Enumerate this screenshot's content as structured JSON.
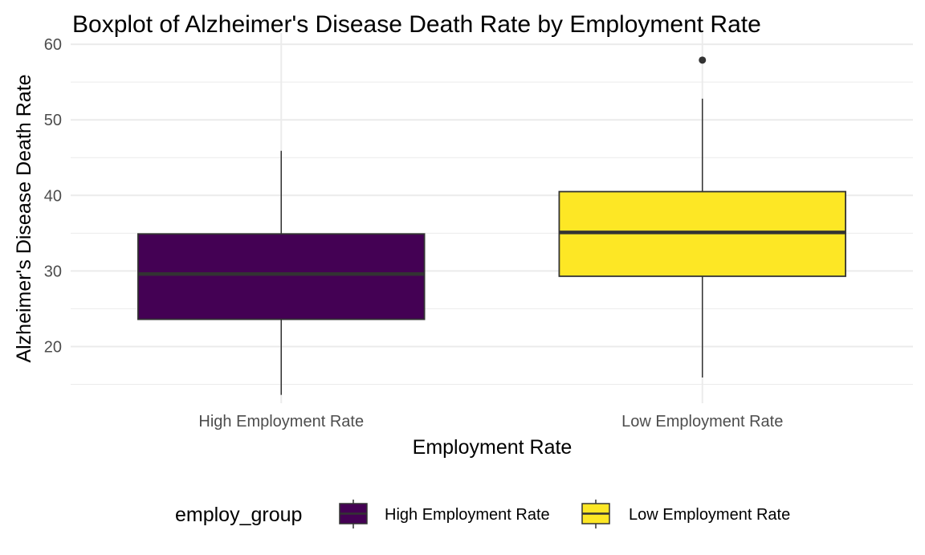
{
  "chart_data": {
    "type": "boxplot",
    "title": "Boxplot of Alzheimer's Disease Death Rate by Employment Rate",
    "xlabel": "Employment Rate",
    "ylabel": "Alzheimer's Disease Death Rate",
    "ylim": [
      12.5,
      61.5
    ],
    "yticks": [
      20,
      30,
      40,
      50,
      60
    ],
    "grid": true,
    "legend_position": "bottom",
    "legend_title": "employ_group",
    "categories": [
      "High Employment Rate",
      "Low Employment Rate"
    ],
    "series": [
      {
        "name": "High Employment Rate",
        "color": "#440154",
        "whisker_low": 13.6,
        "q1": 23.6,
        "median": 29.6,
        "q3": 34.9,
        "whisker_high": 45.9,
        "outliers": []
      },
      {
        "name": "Low Employment Rate",
        "color": "#FDE725",
        "whisker_low": 15.9,
        "q1": 29.3,
        "median": 35.1,
        "q3": 40.5,
        "whisker_high": 52.8,
        "outliers": [
          57.9
        ]
      }
    ]
  }
}
